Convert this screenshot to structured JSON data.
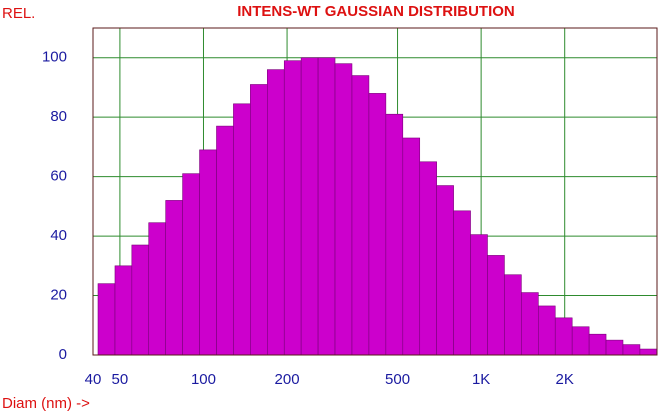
{
  "chart_data": {
    "type": "histogram",
    "title": "INTENS-WT GAUSSIAN DISTRIBUTION",
    "ylabel": "REL.",
    "xlabel": "Diam (nm) ->",
    "bins": [
      41.7,
      48.0,
      55.2,
      63.5,
      73.1,
      84.1,
      96.8,
      111.4,
      128.2,
      147.5,
      169.8,
      195.4,
      224.8,
      258.7,
      297.7,
      342.6,
      394.3,
      453.8,
      522.2,
      601,
      691.6,
      795.9,
      915.9,
      1054,
      1213,
      1396,
      1607,
      1849,
      2128,
      2449,
      2818,
      3243,
      3732,
      4295
    ],
    "values": [
      24,
      30,
      37,
      44.5,
      52,
      61,
      69,
      77,
      84.5,
      91,
      96,
      99,
      100,
      100,
      98,
      94,
      88,
      81,
      73,
      65,
      57,
      48.5,
      40.5,
      33.5,
      27,
      21,
      16.5,
      12.5,
      9.5,
      7,
      5,
      3.5,
      2
    ],
    "color": "#cc00cc",
    "xscale": "log",
    "xlim": [
      40,
      4300
    ],
    "xticks": [
      40,
      50,
      100,
      200,
      500,
      {
        "value": 1000,
        "label": "1K"
      },
      {
        "value": 2000,
        "label": "2K"
      }
    ],
    "ylim": [
      0,
      110
    ],
    "yticks": [
      0,
      20,
      40,
      60,
      80,
      100
    ],
    "grid": true
  }
}
